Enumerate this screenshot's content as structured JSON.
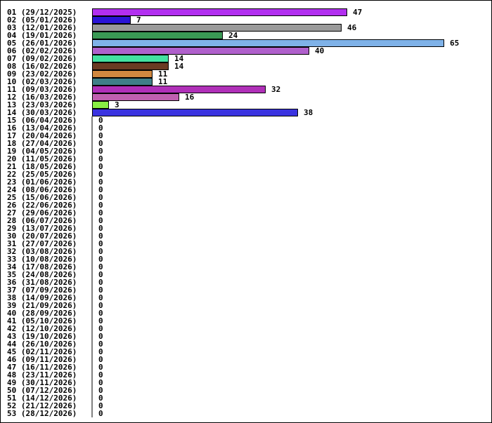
{
  "chart_data": {
    "type": "bar",
    "orientation": "horizontal",
    "title": "",
    "xlabel": "",
    "ylabel": "",
    "grid": false,
    "legend": "none",
    "xlim": [
      0,
      65
    ],
    "categories": [
      "01 (29/12/2025)",
      "02 (05/01/2026)",
      "03 (12/01/2026)",
      "04 (19/01/2026)",
      "05 (26/01/2026)",
      "06 (02/02/2026)",
      "07 (09/02/2026)",
      "08 (16/02/2026)",
      "09 (23/02/2026)",
      "10 (02/03/2026)",
      "11 (09/03/2026)",
      "12 (16/03/2026)",
      "13 (23/03/2026)",
      "14 (30/03/2026)",
      "15 (06/04/2026)",
      "16 (13/04/2026)",
      "17 (20/04/2026)",
      "18 (27/04/2026)",
      "19 (04/05/2026)",
      "20 (11/05/2026)",
      "21 (18/05/2026)",
      "22 (25/05/2026)",
      "23 (01/06/2026)",
      "24 (08/06/2026)",
      "25 (15/06/2026)",
      "26 (22/06/2026)",
      "27 (29/06/2026)",
      "28 (06/07/2026)",
      "29 (13/07/2026)",
      "30 (20/07/2026)",
      "31 (27/07/2026)",
      "32 (03/08/2026)",
      "33 (10/08/2026)",
      "34 (17/08/2026)",
      "35 (24/08/2026)",
      "36 (31/08/2026)",
      "37 (07/09/2026)",
      "38 (14/09/2026)",
      "39 (21/09/2026)",
      "40 (28/09/2026)",
      "41 (05/10/2026)",
      "42 (12/10/2026)",
      "43 (19/10/2026)",
      "44 (26/10/2026)",
      "45 (02/11/2026)",
      "46 (09/11/2026)",
      "47 (16/11/2026)",
      "48 (23/11/2026)",
      "49 (30/11/2026)",
      "50 (07/12/2026)",
      "51 (14/12/2026)",
      "52 (21/12/2026)",
      "53 (28/12/2026)"
    ],
    "values": [
      47,
      7,
      46,
      24,
      65,
      40,
      14,
      14,
      11,
      11,
      32,
      16,
      3,
      38,
      0,
      0,
      0,
      0,
      0,
      0,
      0,
      0,
      0,
      0,
      0,
      0,
      0,
      0,
      0,
      0,
      0,
      0,
      0,
      0,
      0,
      0,
      0,
      0,
      0,
      0,
      0,
      0,
      0,
      0,
      0,
      0,
      0,
      0,
      0,
      0,
      0,
      0,
      0
    ],
    "colors": [
      "#b22ff0",
      "#2a14d6",
      "#9a9a9a",
      "#3a9a55",
      "#7fb2e8",
      "#b060cc",
      "#44e0a0",
      "#6a3a22",
      "#d08840",
      "#3f7f88",
      "#b030b8",
      "#c060b0",
      "#88ee44",
      "#3a33e0"
    ]
  }
}
